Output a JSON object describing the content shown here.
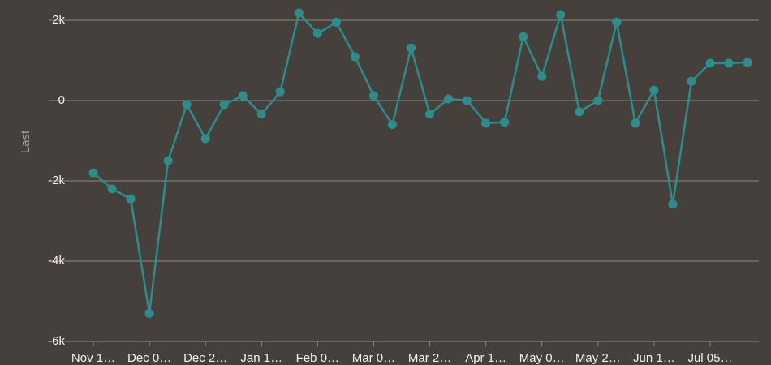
{
  "chart_data": {
    "type": "line",
    "y_label": "Last",
    "color": "#2b8e8c",
    "grid": true,
    "categories": [
      "Nov 1…",
      null,
      null,
      "Dec 0…",
      null,
      null,
      "Dec 2…",
      null,
      null,
      "Jan 1…",
      null,
      null,
      "Feb 0…",
      null,
      null,
      "Mar 0…",
      null,
      null,
      "Mar 2…",
      null,
      null,
      "Apr 1…",
      null,
      null,
      "May 0…",
      null,
      null,
      "May 2…",
      null,
      null,
      "Jun 1…",
      null,
      null,
      "Jul 05…",
      null,
      null
    ],
    "values": [
      -1800,
      -2200,
      -2450,
      -5300,
      -1500,
      -100,
      -950,
      -100,
      120,
      -340,
      220,
      2180,
      1670,
      1950,
      1090,
      120,
      -600,
      1310,
      -340,
      40,
      0,
      -560,
      -540,
      1590,
      600,
      2140,
      -280,
      0,
      1950,
      -560,
      260,
      -2580,
      480,
      930,
      930,
      950
    ],
    "ylim": [
      -6000,
      2500
    ],
    "yticks": [
      {
        "value": -6000,
        "label": "-6k"
      },
      {
        "value": -4000,
        "label": "-4k"
      },
      {
        "value": -2000,
        "label": "-2k"
      },
      0,
      {
        "value": 2000,
        "label": "2k"
      }
    ]
  }
}
